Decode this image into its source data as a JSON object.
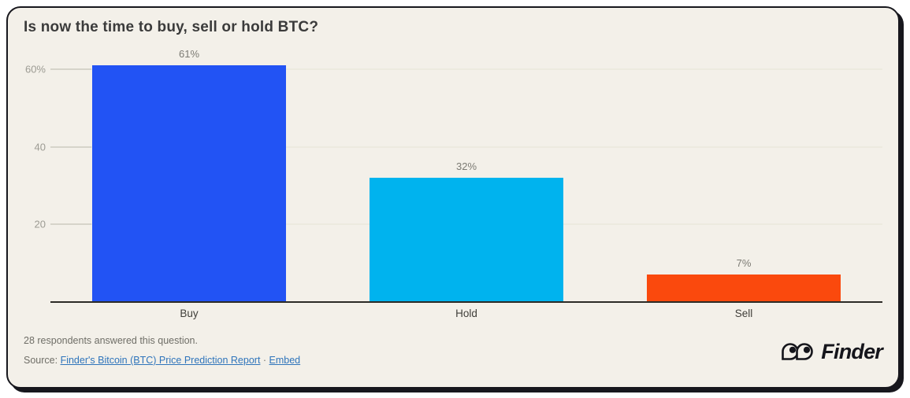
{
  "title": "Is now the time to buy, sell or hold BTC?",
  "chart_data": {
    "type": "bar",
    "title": "Is now the time to buy, sell or hold BTC?",
    "categories": [
      "Buy",
      "Hold",
      "Sell"
    ],
    "values": [
      61,
      32,
      7
    ],
    "value_labels": [
      "61%",
      "32%",
      "7%"
    ],
    "bar_colors": [
      "#2253f4",
      "#00b3ee",
      "#fa490d"
    ],
    "y_ticks": [
      {
        "value": 20,
        "label": "20"
      },
      {
        "value": 40,
        "label": "40"
      },
      {
        "value": 60,
        "label": "60%"
      }
    ],
    "ylim": [
      0,
      64
    ],
    "xlabel": "",
    "ylabel": "",
    "grid": true,
    "legend": "none"
  },
  "footer": {
    "respondents_note": "28 respondents answered this question.",
    "source_prefix": "Source: ",
    "source_link": "Finder's Bitcoin (BTC) Price Prediction Report",
    "separator": " · ",
    "embed_link": "Embed",
    "logo_text": "Finder"
  },
  "colors": {
    "card_background": "#f3f0e9",
    "card_border": "#17171d",
    "title_text": "#3b3b3b",
    "axis_line": "#2c2b26",
    "tick_text": "#9c9b93",
    "value_label_text": "#7c7b74",
    "link": "#2e74bb",
    "buy_blue": "#2253f4",
    "hold_cyan": "#00b3ee",
    "sell_orange": "#fa490d"
  }
}
